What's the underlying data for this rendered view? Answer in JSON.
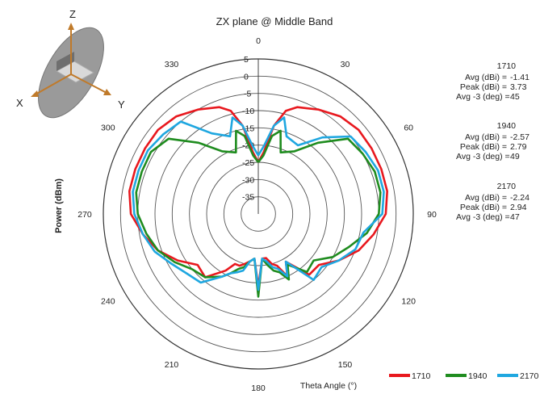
{
  "chart_data": {
    "type": "polar-line",
    "title": "ZX plane @ Middle Band",
    "ylabel": "Power (dBm)",
    "xlabel": "Theta  Angle (°)",
    "radial_range": [
      -40,
      5
    ],
    "radial_ticks": [
      5,
      0,
      -5,
      -10,
      -15,
      -20,
      -25,
      -30,
      -35
    ],
    "angle_ticks": [
      0,
      30,
      60,
      90,
      120,
      150,
      180,
      210,
      240,
      270,
      300,
      330
    ],
    "grid": true,
    "legend_position": "bottom-right",
    "series": [
      {
        "name": "1710",
        "color": "#e8181e",
        "theta": [
          0,
          5,
          10,
          15,
          20,
          30,
          40,
          50,
          60,
          70,
          80,
          90,
          100,
          110,
          120,
          130,
          140,
          150,
          155,
          160,
          165,
          170,
          175,
          180,
          185,
          190,
          195,
          200,
          205,
          210,
          220,
          230,
          240,
          250,
          260,
          270,
          280,
          290,
          300,
          310,
          320,
          330,
          340,
          345,
          350,
          355,
          360
        ],
        "r": [
          -25,
          -22,
          -14,
          -9,
          -7,
          -5,
          -3,
          -2,
          -2,
          -2,
          -2,
          -3,
          -6,
          -9,
          -13,
          -17,
          -17,
          -24,
          -20,
          -24,
          -25,
          -27,
          -27,
          -19,
          -27,
          -26,
          -25,
          -24,
          -24,
          -21,
          -16,
          -17,
          -13,
          -9,
          -6,
          -3,
          -2,
          -2,
          -2,
          -2,
          -3,
          -5,
          -7,
          -9,
          -14,
          -22,
          -25
        ]
      },
      {
        "name": "1940",
        "color": "#1f8c1f",
        "theta": [
          0,
          5,
          10,
          15,
          20,
          30,
          40,
          50,
          60,
          70,
          80,
          90,
          100,
          110,
          120,
          130,
          140,
          150,
          155,
          160,
          165,
          170,
          175,
          180,
          185,
          190,
          195,
          200,
          205,
          210,
          220,
          230,
          240,
          250,
          260,
          270,
          280,
          290,
          300,
          310,
          320,
          330,
          340,
          345,
          350,
          355,
          360
        ],
        "r": [
          -25,
          -23,
          -17,
          -15,
          -21,
          -19,
          -13,
          -6,
          -5,
          -4,
          -4,
          -5,
          -8,
          -12,
          -15,
          -19,
          -18,
          -23,
          -19,
          -22,
          -23,
          -25,
          -27,
          -16,
          -27,
          -26,
          -24,
          -23,
          -21,
          -19,
          -16,
          -15,
          -12,
          -9,
          -7,
          -5,
          -4,
          -4,
          -4,
          -6,
          -13,
          -19,
          -21,
          -15,
          -17,
          -23,
          -25
        ]
      },
      {
        "name": "2170",
        "color": "#1fa7e0",
        "theta": [
          0,
          5,
          10,
          15,
          20,
          30,
          40,
          50,
          60,
          70,
          80,
          90,
          100,
          110,
          120,
          130,
          140,
          150,
          155,
          160,
          165,
          170,
          175,
          180,
          185,
          190,
          195,
          200,
          205,
          210,
          220,
          230,
          240,
          250,
          260,
          270,
          280,
          290,
          300,
          310,
          320,
          330,
          340,
          345,
          350,
          355,
          360
        ],
        "r": [
          -23,
          -20,
          -14,
          -11,
          -16,
          -17,
          -11,
          -5,
          -4,
          -3,
          -3,
          -4,
          -9,
          -10,
          -13,
          -16,
          -15,
          -24,
          -20,
          -23,
          -24,
          -26,
          -27,
          -18,
          -27,
          -26,
          -23,
          -22,
          -21,
          -19,
          -14,
          -13,
          -11,
          -8,
          -6,
          -4,
          -3,
          -3,
          -3,
          -4,
          -5,
          -13,
          -16,
          -11,
          -14,
          -20,
          -23
        ]
      }
    ],
    "stats": [
      {
        "freq": "1710",
        "avg_label": "Avg (dBi) =",
        "avg": "-1.41",
        "peak_label": "Peak (dBi) =",
        "peak": "3.73",
        "avg3_label": "Avg -3 (deg) =",
        "avg3": "45",
        "color": "#e8181e"
      },
      {
        "freq": "1940",
        "avg_label": "Avg (dBi) =",
        "avg": "-2.57",
        "peak_label": "Peak (dBi) =",
        "peak": "2.79",
        "avg3_label": "Avg -3 (deg) =",
        "avg3": "49",
        "color": "#1f8c1f"
      },
      {
        "freq": "2170",
        "avg_label": "Avg (dBi) =",
        "avg": "-2.24",
        "peak_label": "Peak (dBi) =",
        "peak": "2.94",
        "avg3_label": "Avg -3 (deg) =",
        "avg3": "47",
        "color": "#1fa7e0"
      }
    ]
  },
  "axis_icon": {
    "labels": [
      "Z",
      "X",
      "Y"
    ],
    "arrow_color": "#c07a2a"
  }
}
